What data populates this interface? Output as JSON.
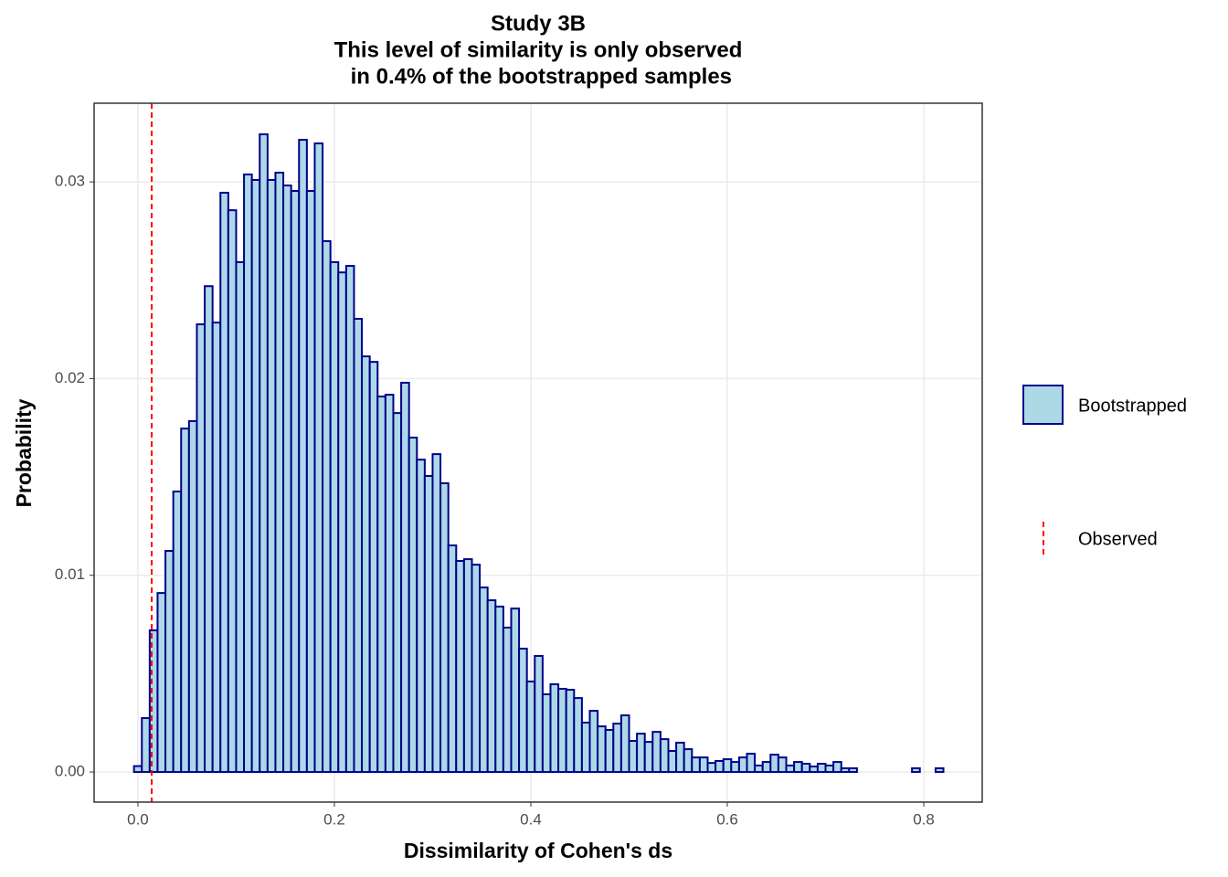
{
  "chart_data": {
    "type": "histogram",
    "title": [
      "Study 3B",
      "This level of similarity is only observed",
      " in 0.4% of the bootstrapped samples"
    ],
    "xlabel": "Dissimilarity of Cohen's ds",
    "ylabel": "Probability",
    "bins": [
      -0.004,
      0.004,
      0.012,
      0.02,
      0.028,
      0.036,
      0.044,
      0.052,
      0.06,
      0.068,
      0.076,
      0.084,
      0.092,
      0.1,
      0.108,
      0.116,
      0.124,
      0.132,
      0.14,
      0.148,
      0.156,
      0.164,
      0.172,
      0.18,
      0.188,
      0.196,
      0.204,
      0.212,
      0.22,
      0.228,
      0.236,
      0.244,
      0.252,
      0.26,
      0.268,
      0.276,
      0.284,
      0.292,
      0.3,
      0.308,
      0.316,
      0.324,
      0.332,
      0.34,
      0.348,
      0.356,
      0.364,
      0.372,
      0.38,
      0.388,
      0.396,
      0.404,
      0.412,
      0.42,
      0.428,
      0.436,
      0.444,
      0.452,
      0.46,
      0.468,
      0.476,
      0.484,
      0.492,
      0.5,
      0.508,
      0.516,
      0.524,
      0.532,
      0.54,
      0.548,
      0.556,
      0.564,
      0.572,
      0.58,
      0.588,
      0.596,
      0.604,
      0.612,
      0.62,
      0.628,
      0.636,
      0.644,
      0.652,
      0.66,
      0.668,
      0.676,
      0.684,
      0.692,
      0.7,
      0.708,
      0.716,
      0.724,
      0.732,
      0.74,
      0.748,
      0.756,
      0.764,
      0.772,
      0.78,
      0.788,
      0.796,
      0.804,
      0.812,
      0.82
    ],
    "series": [
      {
        "name": "Bootstrapped",
        "color": "#add8e6",
        "edgecolor": "#00008b",
        "values": [
          0.0003,
          0.00274,
          0.0072,
          0.0091,
          0.01124,
          0.01426,
          0.01746,
          0.01784,
          0.02276,
          0.0247,
          0.02285,
          0.02945,
          0.02856,
          0.02592,
          0.03038,
          0.0301,
          0.03242,
          0.0301,
          0.03047,
          0.02982,
          0.02954,
          0.03214,
          0.02954,
          0.03196,
          0.02699,
          0.02592,
          0.0254,
          0.02573,
          0.02304,
          0.02113,
          0.02085,
          0.01909,
          0.01918,
          0.01825,
          0.01979,
          0.017,
          0.01588,
          0.01505,
          0.01616,
          0.01468,
          0.01152,
          0.01073,
          0.01082,
          0.01054,
          0.00938,
          0.00873,
          0.00841,
          0.00734,
          0.00831,
          0.00627,
          0.0046,
          0.0059,
          0.00395,
          0.00446,
          0.00423,
          0.00418,
          0.00376,
          0.00251,
          0.00311,
          0.00232,
          0.00214,
          0.00246,
          0.00288,
          0.00158,
          0.00195,
          0.00153,
          0.00204,
          0.00167,
          0.00107,
          0.00149,
          0.00116,
          0.00074,
          0.00074,
          0.00046,
          0.00056,
          0.00065,
          0.00051,
          0.00074,
          0.00093,
          0.00033,
          0.00051,
          0.00088,
          0.00074,
          0.00033,
          0.00051,
          0.00042,
          0.00028,
          0.00042,
          0.00033,
          0.00051,
          0.00019,
          0.00019,
          0,
          0,
          0,
          0,
          0,
          0,
          0,
          0.00019,
          0,
          0,
          0.00019
        ]
      }
    ],
    "vlines": [
      {
        "name": "Observed",
        "color": "#ff0000",
        "x": 0.014
      }
    ],
    "xlim": [
      -0.0446,
      0.8595
    ],
    "xticks": [
      {
        "value": 0,
        "label": "0.0"
      },
      0.2,
      0.4,
      0.6,
      0.8
    ],
    "ylim": [
      -0.00153,
      0.034
    ],
    "yticks": [
      {
        "value": 0,
        "label": "0.00"
      },
      0.01,
      0.02,
      0.03
    ],
    "grid": true
  }
}
